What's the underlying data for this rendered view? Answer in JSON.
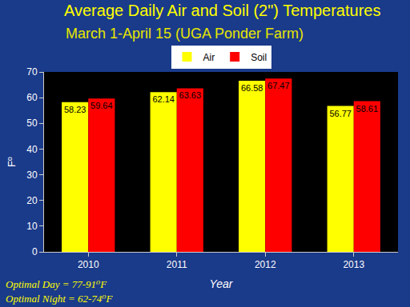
{
  "chart_data": {
    "type": "bar",
    "title": "Average Daily Air and Soil (2\") Temperatures",
    "subtitle": "March 1-April 15 (UGA Ponder Farm)",
    "categories": [
      "2010",
      "2011",
      "2012",
      "2013"
    ],
    "series": [
      {
        "name": "Air",
        "color": "#ffff00",
        "values": [
          58.23,
          62.14,
          66.58,
          56.77
        ]
      },
      {
        "name": "Soil",
        "color": "#ff0000",
        "values": [
          59.64,
          63.63,
          67.47,
          58.61
        ]
      }
    ],
    "x_label": "Year",
    "y_label": "F⁰",
    "ylim": [
      0,
      70
    ],
    "yticks": [
      0,
      10,
      20,
      30,
      40,
      50,
      60,
      70
    ],
    "grid": false,
    "legend": "top",
    "data_labels": true,
    "annotations": [
      "Optimal Day = 77-91⁰F",
      "Optimal Night = 62-74⁰F"
    ]
  }
}
